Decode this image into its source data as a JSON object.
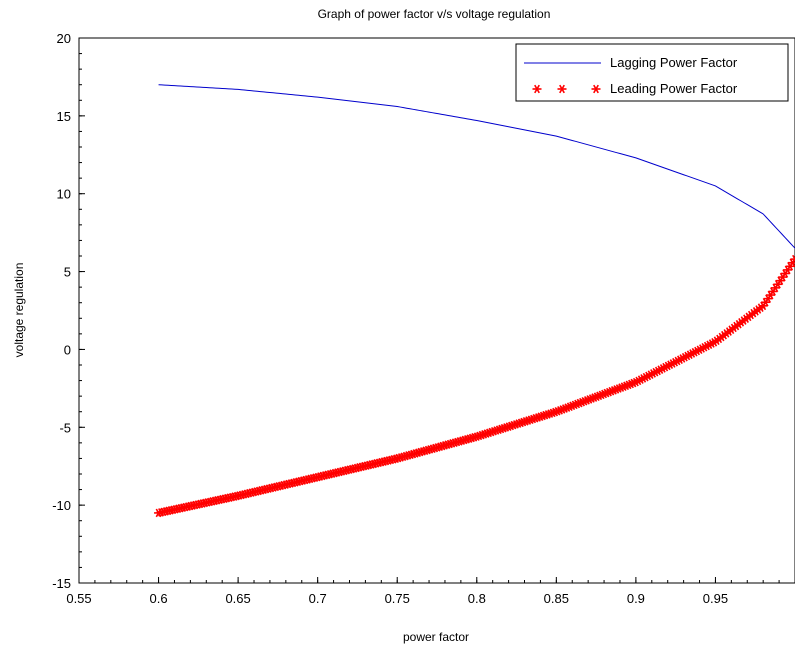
{
  "chart_data": {
    "type": "line",
    "title": "Graph of power factor v/s voltage regulation",
    "xlabel": "power factor",
    "ylabel": "voltage regulation",
    "xlim": [
      0.55,
      1.0
    ],
    "ylim": [
      -15,
      20
    ],
    "x_ticks": [
      "0.55",
      "0.6",
      "0.65",
      "0.7",
      "0.75",
      "0.8",
      "0.85",
      "0.9",
      "0.95"
    ],
    "y_ticks": [
      "-15",
      "-10",
      "-5",
      "0",
      "5",
      "10",
      "15",
      "20"
    ],
    "grid": false,
    "legend_position": "top-right",
    "series": [
      {
        "name": "Lagging Power Factor",
        "style": "line",
        "color": "#0000cc",
        "x": [
          0.6,
          0.65,
          0.7,
          0.75,
          0.8,
          0.85,
          0.9,
          0.95,
          0.98,
          1.0
        ],
        "y": [
          17.0,
          16.7,
          16.2,
          15.6,
          14.7,
          13.7,
          12.3,
          10.5,
          8.7,
          6.5
        ]
      },
      {
        "name": "Leading Power Factor",
        "style": "markers",
        "marker": "*",
        "color": "#ff0000",
        "x": [
          0.6,
          0.65,
          0.7,
          0.75,
          0.8,
          0.85,
          0.9,
          0.95,
          0.98,
          1.0
        ],
        "y": [
          -10.5,
          -9.4,
          -8.2,
          -7.0,
          -5.6,
          -4.0,
          -2.1,
          0.5,
          2.8,
          5.8
        ]
      }
    ]
  }
}
